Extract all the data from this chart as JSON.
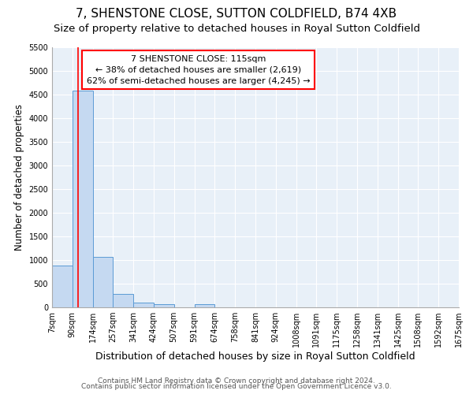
{
  "title1": "7, SHENSTONE CLOSE, SUTTON COLDFIELD, B74 4XB",
  "title2": "Size of property relative to detached houses in Royal Sutton Coldfield",
  "xlabel": "Distribution of detached houses by size in Royal Sutton Coldfield",
  "ylabel": "Number of detached properties",
  "bar_edges": [
    7,
    90,
    174,
    257,
    341,
    424,
    507,
    591,
    674,
    758,
    841,
    924,
    1008,
    1091,
    1175,
    1258,
    1341,
    1425,
    1508,
    1592,
    1675
  ],
  "bar_heights": [
    880,
    4580,
    1060,
    290,
    100,
    70,
    0,
    60,
    0,
    0,
    0,
    0,
    0,
    0,
    0,
    0,
    0,
    0,
    0,
    0
  ],
  "bar_color": "#c5d9f1",
  "bar_edgecolor": "#5b9bd5",
  "red_line_x": 115,
  "annotation_line1": "7 SHENSTONE CLOSE: 115sqm",
  "annotation_line2": "← 38% of detached houses are smaller (2,619)",
  "annotation_line3": "62% of semi-detached houses are larger (4,245) →",
  "ylim": [
    0,
    5500
  ],
  "yticks": [
    0,
    500,
    1000,
    1500,
    2000,
    2500,
    3000,
    3500,
    4000,
    4500,
    5000,
    5500
  ],
  "footer1": "Contains HM Land Registry data © Crown copyright and database right 2024.",
  "footer2": "Contains public sector information licensed under the Open Government Licence v3.0.",
  "fig_bg_color": "#ffffff",
  "ax_bg_color": "#e8f0f8",
  "grid_color": "#ffffff",
  "title1_fontsize": 11,
  "title2_fontsize": 9.5,
  "xlabel_fontsize": 9,
  "ylabel_fontsize": 8.5,
  "tick_fontsize": 7,
  "annotation_fontsize": 8,
  "footer_fontsize": 6.5
}
